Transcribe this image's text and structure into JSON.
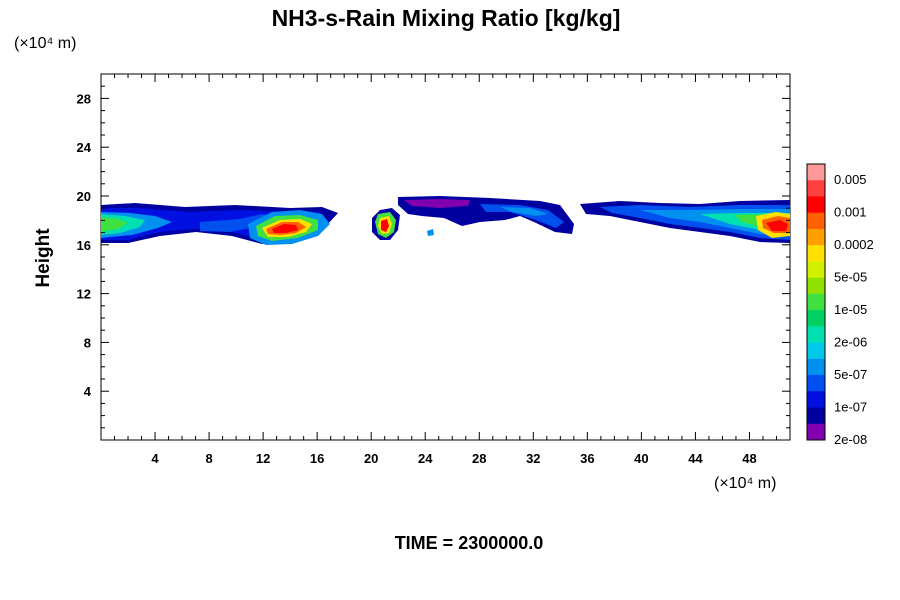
{
  "chart_data": {
    "type": "contour",
    "title": "NH3-s-Rain Mixing Ratio [kg/kg]",
    "ylabel": "Height",
    "y_unit_label": "(×10⁴ m)",
    "x_unit_label": "(×10⁴ m)",
    "xlim": [
      0,
      51
    ],
    "ylim": [
      0,
      30
    ],
    "x_ticks": [
      "4",
      "8",
      "12",
      "16",
      "20",
      "24",
      "28",
      "32",
      "36",
      "40",
      "44",
      "48"
    ],
    "y_ticks": [
      "4",
      "8",
      "12",
      "16",
      "20",
      "24",
      "28"
    ],
    "time_label": "TIME = 2300000.0",
    "colorbar": {
      "labels": [
        "0.005",
        "0.001",
        "0.0002",
        "5e-05",
        "1e-05",
        "2e-06",
        "5e-07",
        "1e-07",
        "2e-08"
      ],
      "colors": [
        "#ff9a9a",
        "#ff4040",
        "#ff0000",
        "#ff6000",
        "#ffa000",
        "#ffe000",
        "#d0f000",
        "#90e000",
        "#40e040",
        "#00d060",
        "#00e0b0",
        "#00c8e8",
        "#0090f0",
        "#0050f0",
        "#0010e0",
        "#0000a0",
        "#8000b0"
      ]
    },
    "regions": [
      {
        "name": "band-1",
        "x_range": [
          0,
          18
        ],
        "y_range": [
          16.0,
          19.6
        ],
        "peak": "0.001"
      },
      {
        "name": "core-1",
        "x_range": [
          11.8,
          15.2
        ],
        "y_range": [
          16.2,
          18.2
        ],
        "peak": "0.001"
      },
      {
        "name": "core-2",
        "x_range": [
          20.3,
          22.3
        ],
        "y_range": [
          16.2,
          18.8
        ],
        "peak": "0.001"
      },
      {
        "name": "band-2",
        "x_range": [
          22,
          35
        ],
        "y_range": [
          16.8,
          19.8
        ],
        "peak": "2e-06"
      },
      {
        "name": "band-3",
        "x_range": [
          35,
          51
        ],
        "y_range": [
          16.0,
          19.6
        ],
        "peak": "0.001"
      },
      {
        "name": "core-3",
        "x_range": [
          48.0,
          51.0
        ],
        "y_range": [
          16.4,
          18.6
        ],
        "peak": "0.001"
      }
    ]
  }
}
